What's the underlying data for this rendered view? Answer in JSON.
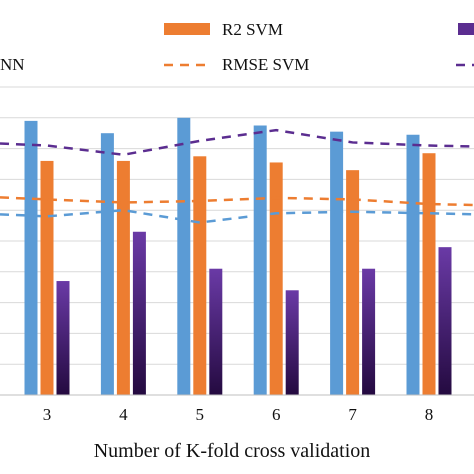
{
  "chart_data": {
    "type": "bar",
    "categories": [
      "3",
      "4",
      "5",
      "6",
      "7",
      "8"
    ],
    "xlabel": "Number of  K-fold cross validation",
    "ylabel": "",
    "grid": true,
    "legend_placement": "top",
    "series": [
      {
        "name": "ANN",
        "name_visible": "NN",
        "kind": "bar",
        "color": "#5b9bd5",
        "values": [
          0.89,
          0.85,
          0.9,
          0.875,
          0.855,
          0.845
        ]
      },
      {
        "name": "R2 SVM",
        "kind": "bar",
        "color": "#ed7d31",
        "values": [
          0.76,
          0.76,
          0.775,
          0.755,
          0.73,
          0.785
        ]
      },
      {
        "name": "",
        "kind": "bar",
        "color": "#5b2d90",
        "color_dark": "#2a0d4a",
        "values": [
          0.37,
          0.53,
          0.41,
          0.34,
          0.41,
          0.48
        ]
      },
      {
        "name": "",
        "kind": "line",
        "color": "#5b9bd5",
        "dash": true,
        "values": [
          0.58,
          0.6,
          0.56,
          0.59,
          0.595,
          0.59
        ]
      },
      {
        "name": "RMSE SVM",
        "kind": "line",
        "color": "#ed7d31",
        "dash": true,
        "values": [
          0.635,
          0.625,
          0.63,
          0.64,
          0.635,
          0.62
        ]
      },
      {
        "name": "",
        "kind": "line",
        "color": "#5b2d90",
        "dash": true,
        "values": [
          0.81,
          0.78,
          0.825,
          0.86,
          0.82,
          0.81
        ]
      }
    ],
    "ylim": [
      0,
      1
    ],
    "gridline_values": [
      0.1,
      0.2,
      0.3,
      0.4,
      0.5,
      0.6,
      0.7,
      0.8,
      0.9,
      1.0
    ]
  }
}
